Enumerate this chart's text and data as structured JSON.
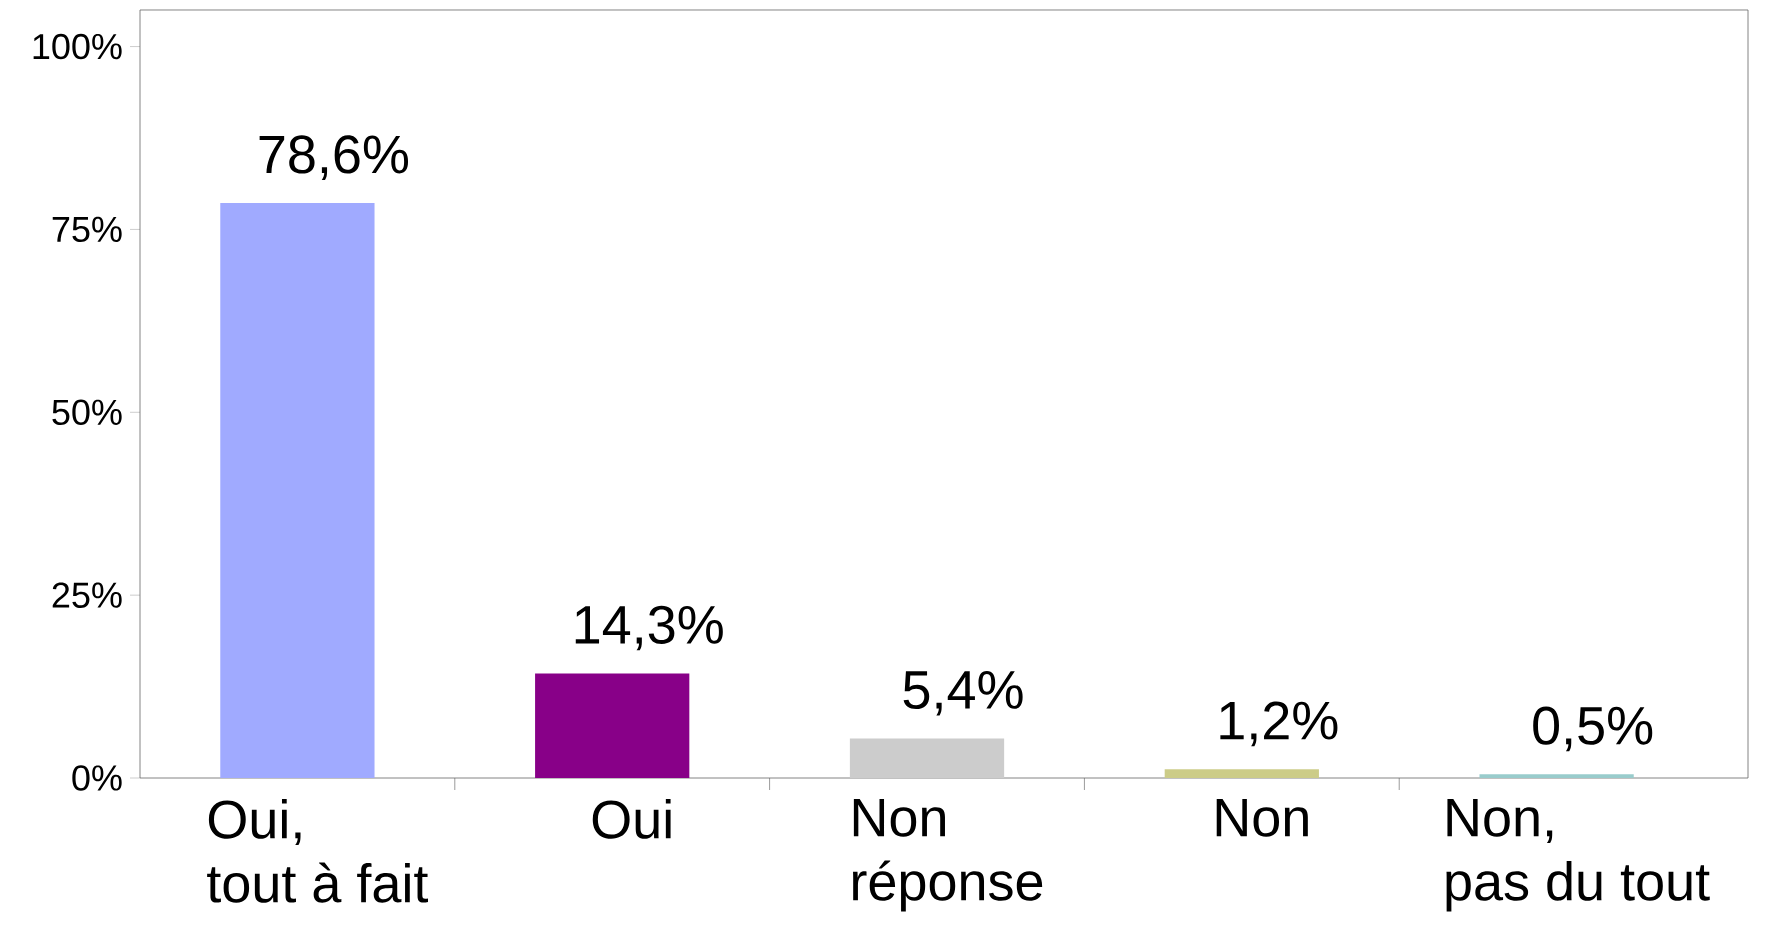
{
  "chart_data": {
    "type": "bar",
    "categories": [
      "Oui,\ntout à fait",
      "Oui",
      "Non\nréponse",
      "Non",
      "Non,\npas du tout"
    ],
    "values": [
      78.6,
      14.3,
      5.4,
      1.2,
      0.5
    ],
    "colors": [
      "#a0aaff",
      "#880088",
      "#cccccc",
      "#cccc88",
      "#99cccc"
    ],
    "value_labels": [
      "78,6%",
      "14,3%",
      "5,4%",
      "1,2%",
      "0,5%"
    ],
    "ylim": [
      0,
      105
    ],
    "yticks": [
      {
        "value": 0,
        "label": "0%"
      },
      {
        "value": 25,
        "label": "25%"
      },
      {
        "value": 50,
        "label": "50%"
      },
      {
        "value": 75,
        "label": "75%"
      },
      {
        "value": 100,
        "label": "100%"
      }
    ]
  }
}
